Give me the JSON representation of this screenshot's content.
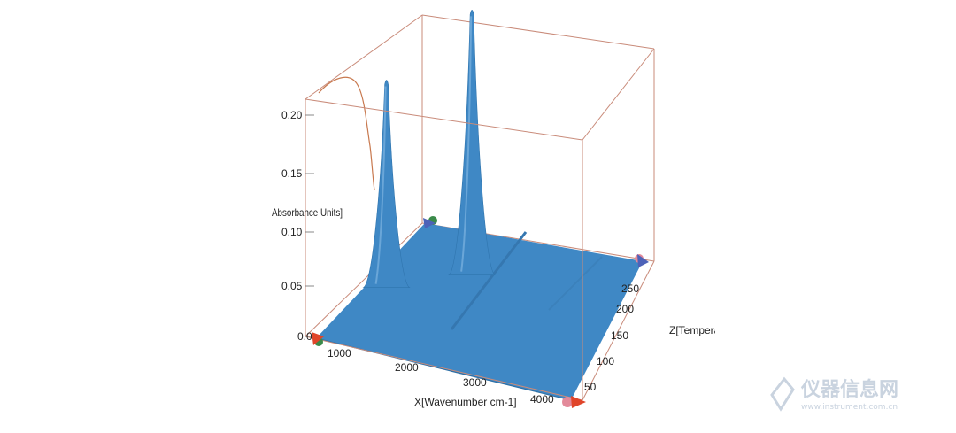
{
  "chart_data": {
    "type": "surface3d",
    "x_axis": {
      "title": "X[Wavenumber cm-1]",
      "range": [
        650,
        4300
      ],
      "ticks": [
        1000,
        2000,
        3000,
        4000
      ]
    },
    "y_axis": {
      "title": "Absorbance Units]",
      "range": [
        0,
        0.22
      ],
      "ticks": [
        "0.0",
        "0.05",
        "0.10",
        "0.15",
        "0.20"
      ]
    },
    "z_axis": {
      "title": "Z[Temperature]",
      "range": [
        40,
        280
      ],
      "ticks": [
        50,
        100,
        150,
        200,
        250
      ]
    },
    "peaks": [
      {
        "x": 1000,
        "height": 0.185
      },
      {
        "x": 2350,
        "height": 0.237
      }
    ],
    "surface_color": "#3f88c5",
    "trace_color": "#c8794f",
    "box_color": "#c98b7a"
  },
  "watermark": {
    "brand": "仪器信息网",
    "url": "www.instrument.com.cn"
  }
}
